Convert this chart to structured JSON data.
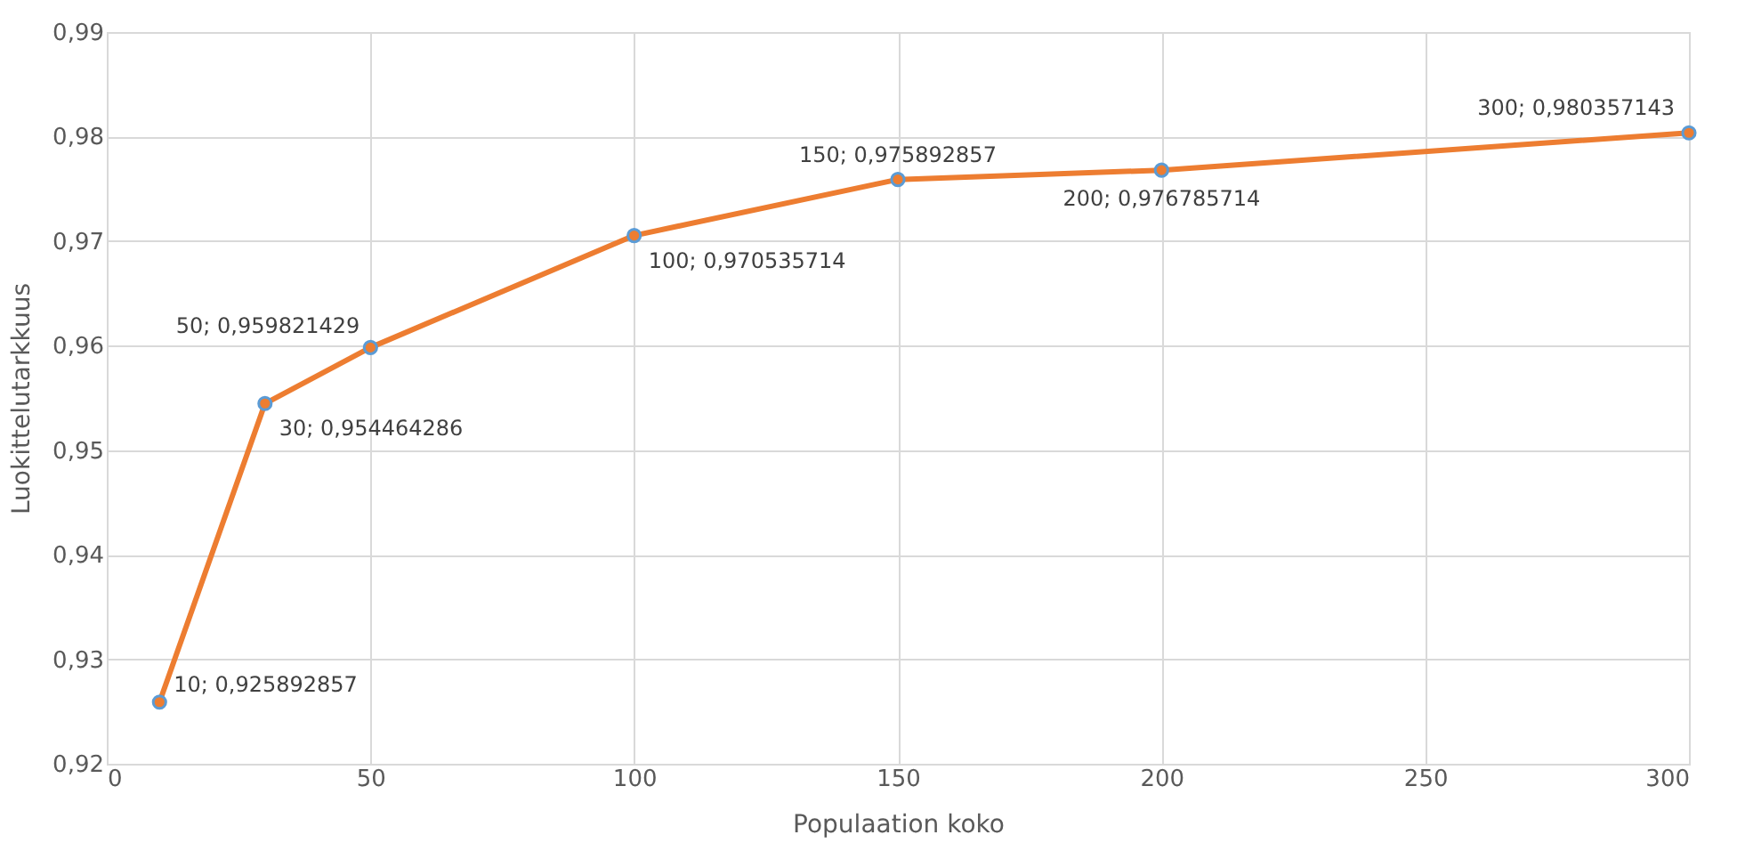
{
  "chart_data": {
    "type": "line",
    "xlabel": "Populaation koko",
    "ylabel": "Luokittelutarkkuus",
    "x": [
      10,
      30,
      50,
      100,
      150,
      200,
      300
    ],
    "series": [
      {
        "color": "#ed7d31",
        "values": [
          0.925892857,
          0.954464286,
          0.959821429,
          0.970535714,
          0.975892857,
          0.976785714,
          0.980357143
        ],
        "value_labels": [
          "10; 0,925892857",
          "30; 0,954464286",
          "50; 0,959821429",
          "100; 0,970535714",
          "150; 0,975892857",
          "200; 0,976785714",
          "300; 0,980357143"
        ]
      }
    ],
    "xlim": [
      0,
      300
    ],
    "xticks": [
      0,
      50,
      100,
      150,
      200,
      250,
      300
    ],
    "ylim": [
      0.92,
      0.99
    ],
    "yticks": [
      {
        "value": 0.92,
        "label": "0,92"
      },
      {
        "value": 0.93,
        "label": "0,93"
      },
      {
        "value": 0.94,
        "label": "0,94"
      },
      {
        "value": 0.95,
        "label": "0,95"
      },
      {
        "value": 0.96,
        "label": "0,96"
      },
      {
        "value": 0.97,
        "label": "0,97"
      },
      {
        "value": 0.98,
        "label": "0,98"
      },
      {
        "value": 0.99,
        "label": "0,99"
      }
    ],
    "grid": true,
    "marker": "circle",
    "line_style": "solid"
  }
}
